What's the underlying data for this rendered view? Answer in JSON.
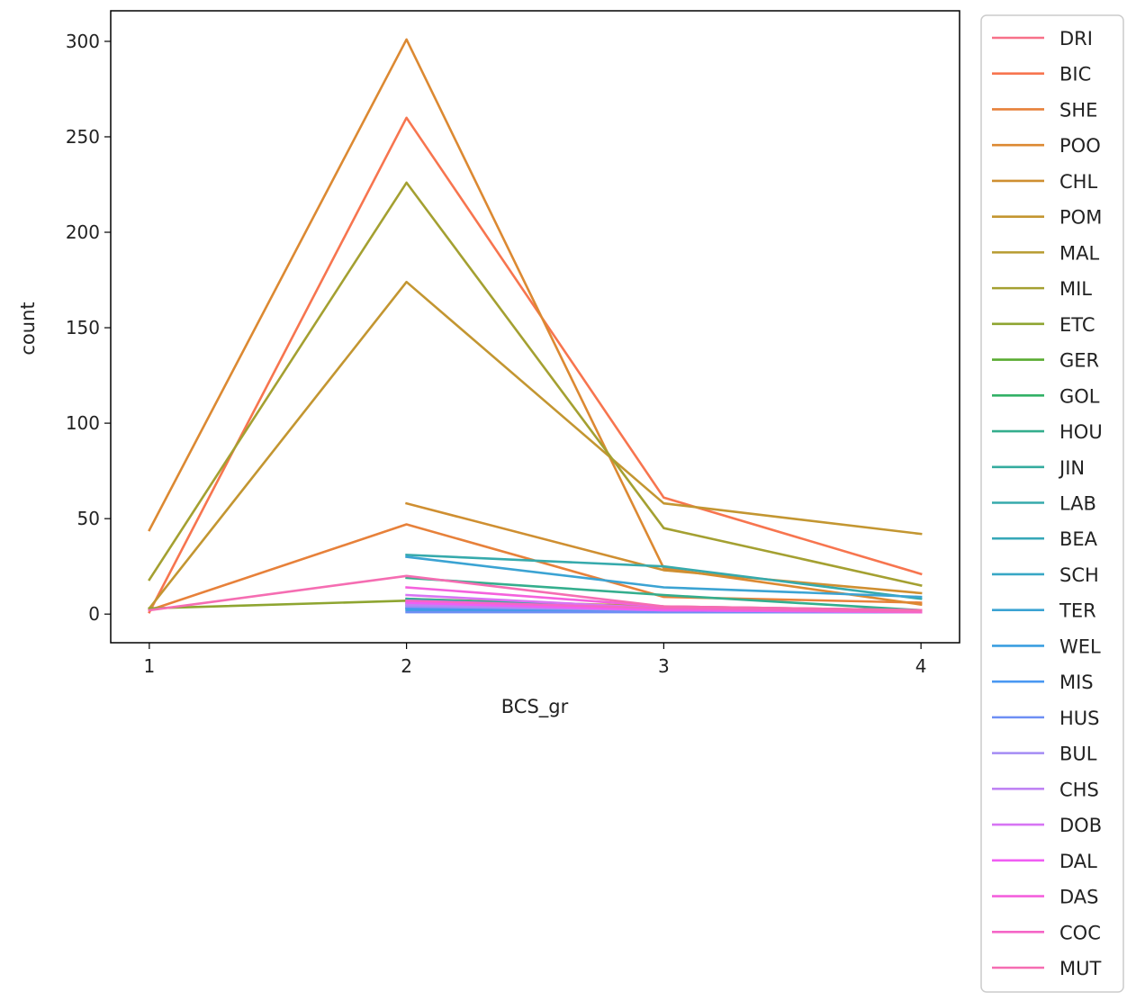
{
  "chart_data": {
    "type": "line",
    "title": "",
    "xlabel": "BCS_gr",
    "ylabel": "count",
    "x_ticks": [
      1,
      2,
      3,
      4
    ],
    "y_ticks": [
      0,
      50,
      100,
      150,
      200,
      250,
      300
    ],
    "xlim": [
      0.85,
      4.15
    ],
    "ylim": [
      -15,
      316
    ],
    "grid": false,
    "legend_position": "outside-right",
    "series": [
      {
        "name": "DRI",
        "color": "#f77189",
        "x": [
          2,
          3,
          4
        ],
        "y": [
          3,
          2,
          1
        ]
      },
      {
        "name": "BIC",
        "color": "#f7754f",
        "x": [
          1,
          2,
          3,
          4
        ],
        "y": [
          1,
          260,
          61,
          21
        ]
      },
      {
        "name": "SHE",
        "color": "#e7813a",
        "x": [
          1,
          2,
          3,
          4
        ],
        "y": [
          2,
          47,
          9,
          6
        ]
      },
      {
        "name": "POO",
        "color": "#dc8932",
        "x": [
          1,
          2,
          3,
          4
        ],
        "y": [
          44,
          301,
          24,
          5
        ]
      },
      {
        "name": "CHL",
        "color": "#cf8f31",
        "x": [
          2,
          3,
          4
        ],
        "y": [
          58,
          23,
          11
        ]
      },
      {
        "name": "POM",
        "color": "#c39631",
        "x": [
          1,
          2,
          3,
          4
        ],
        "y": [
          3,
          174,
          58,
          42
        ]
      },
      {
        "name": "MAL",
        "color": "#b79b31",
        "x": [
          2,
          3,
          4
        ],
        "y": [
          8,
          4,
          2
        ]
      },
      {
        "name": "MIL",
        "color": "#a4a031",
        "x": [
          1,
          2,
          3,
          4
        ],
        "y": [
          18,
          226,
          45,
          15
        ]
      },
      {
        "name": "ETC",
        "color": "#8ea531",
        "x": [
          1,
          2,
          3,
          4
        ],
        "y": [
          3,
          7,
          3,
          1
        ]
      },
      {
        "name": "GER",
        "color": "#59ab31",
        "x": [
          2,
          3,
          4
        ],
        "y": [
          6,
          3,
          2
        ]
      },
      {
        "name": "GOL",
        "color": "#32b166",
        "x": [
          2,
          3,
          4
        ],
        "y": [
          5,
          2,
          1
        ]
      },
      {
        "name": "HOU",
        "color": "#34ae8d",
        "x": [
          2,
          3,
          4
        ],
        "y": [
          19,
          10,
          2
        ]
      },
      {
        "name": "JIN",
        "color": "#35ac9f",
        "x": [
          2,
          3,
          4
        ],
        "y": [
          8,
          3,
          1
        ]
      },
      {
        "name": "LAB",
        "color": "#36aaac",
        "x": [
          2,
          3,
          4
        ],
        "y": [
          31,
          25,
          8
        ]
      },
      {
        "name": "BEA",
        "color": "#37a8b8",
        "x": [
          2,
          3,
          4
        ],
        "y": [
          4,
          2,
          1
        ]
      },
      {
        "name": "SCH",
        "color": "#38a7c5",
        "x": [
          2,
          3,
          4
        ],
        "y": [
          3,
          2,
          1
        ]
      },
      {
        "name": "TER",
        "color": "#3ba3d3",
        "x": [
          2,
          3,
          4
        ],
        "y": [
          30,
          14,
          9
        ]
      },
      {
        "name": "WEL",
        "color": "#3b9fe1",
        "x": [
          2,
          3,
          4
        ],
        "y": [
          2,
          1,
          1
        ]
      },
      {
        "name": "MIS",
        "color": "#4a98f2",
        "x": [
          2,
          3,
          4
        ],
        "y": [
          3,
          2,
          1
        ]
      },
      {
        "name": "HUS",
        "color": "#6e8ff4",
        "x": [
          2,
          3,
          4
        ],
        "y": [
          1,
          1,
          1
        ]
      },
      {
        "name": "BUL",
        "color": "#a48cf4",
        "x": [
          2,
          3,
          4
        ],
        "y": [
          4,
          2,
          1
        ]
      },
      {
        "name": "CHS",
        "color": "#c084f4",
        "x": [
          2,
          3,
          4
        ],
        "y": [
          5,
          2,
          1
        ]
      },
      {
        "name": "DOB",
        "color": "#d774f4",
        "x": [
          2,
          3,
          4
        ],
        "y": [
          10,
          3,
          1
        ]
      },
      {
        "name": "DAL",
        "color": "#f05ef3",
        "x": [
          2,
          3,
          4
        ],
        "y": [
          6,
          2,
          1
        ]
      },
      {
        "name": "DAS",
        "color": "#f461dd",
        "x": [
          2,
          3,
          4
        ],
        "y": [
          14,
          4,
          2
        ]
      },
      {
        "name": "COC",
        "color": "#f566c7",
        "x": [
          2,
          3,
          4
        ],
        "y": [
          7,
          3,
          1
        ]
      },
      {
        "name": "MUT",
        "color": "#f56db2",
        "x": [
          1,
          2,
          3,
          4
        ],
        "y": [
          2,
          20,
          4,
          2
        ]
      }
    ]
  }
}
